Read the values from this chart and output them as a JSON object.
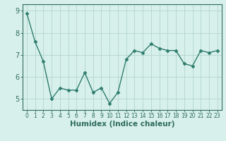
{
  "x": [
    0,
    1,
    2,
    3,
    4,
    5,
    6,
    7,
    8,
    9,
    10,
    11,
    12,
    13,
    14,
    15,
    16,
    17,
    18,
    19,
    20,
    21,
    22,
    23
  ],
  "y": [
    8.9,
    7.6,
    6.7,
    5.0,
    5.5,
    5.4,
    5.4,
    6.2,
    5.3,
    5.5,
    4.8,
    5.3,
    6.8,
    7.2,
    7.1,
    7.5,
    7.3,
    7.2,
    7.2,
    6.6,
    6.5,
    7.2,
    7.1,
    7.2
  ],
  "line_color": "#2e7d6e",
  "marker": "D",
  "marker_size": 2.5,
  "bg_color": "#d8f0ec",
  "grid_color": "#b8d8d2",
  "xlabel": "Humidex (Indice chaleur)",
  "ylim": [
    4.5,
    9.3
  ],
  "xlim": [
    -0.5,
    23.5
  ],
  "yticks": [
    5,
    6,
    7,
    8,
    9
  ],
  "xticks": [
    0,
    1,
    2,
    3,
    4,
    5,
    6,
    7,
    8,
    9,
    10,
    11,
    12,
    13,
    14,
    15,
    16,
    17,
    18,
    19,
    20,
    21,
    22,
    23
  ],
  "tick_color": "#2e6b5e",
  "axis_color": "#2e6b5e",
  "xlabel_fontsize": 7.5,
  "ytick_fontsize": 7,
  "xtick_fontsize": 5.5
}
